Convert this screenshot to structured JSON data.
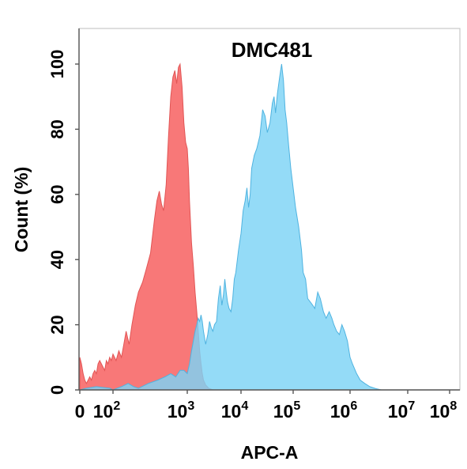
{
  "chart_data": {
    "type": "area",
    "title": "DMC481",
    "xlabel": "APC-A",
    "ylabel": "Count  (%)",
    "x_scale": "biexponential",
    "xlim": [
      0,
      100000000
    ],
    "ylim": [
      0,
      100
    ],
    "y_ticks": [
      0,
      20,
      40,
      60,
      80,
      100
    ],
    "x_ticks": [
      {
        "value": 0,
        "base": "0",
        "exp": ""
      },
      {
        "value": 100,
        "base": "10",
        "exp": "2"
      },
      {
        "value": 1000,
        "base": "10",
        "exp": "3"
      },
      {
        "value": 10000,
        "base": "10",
        "exp": "4"
      },
      {
        "value": 100000,
        "base": "10",
        "exp": "5"
      },
      {
        "value": 1000000,
        "base": "10",
        "exp": "6"
      },
      {
        "value": 10000000,
        "base": "10",
        "exp": "7"
      },
      {
        "value": 100000000,
        "base": "10",
        "exp": "8"
      }
    ],
    "grid": false,
    "series": [
      {
        "color": "#f87171",
        "stroke": "#e15555",
        "points": [
          [
            0,
            10
          ],
          [
            5,
            8
          ],
          [
            10,
            5
          ],
          [
            15,
            3
          ],
          [
            20,
            2
          ],
          [
            25,
            3
          ],
          [
            30,
            4
          ],
          [
            35,
            3
          ],
          [
            40,
            5
          ],
          [
            45,
            6
          ],
          [
            50,
            5
          ],
          [
            55,
            8
          ],
          [
            60,
            9
          ],
          [
            65,
            8
          ],
          [
            70,
            7
          ],
          [
            75,
            6
          ],
          [
            80,
            9
          ],
          [
            85,
            8
          ],
          [
            90,
            10
          ],
          [
            95,
            9
          ],
          [
            100,
            11
          ],
          [
            110,
            9
          ],
          [
            120,
            12
          ],
          [
            130,
            10
          ],
          [
            140,
            14
          ],
          [
            150,
            18
          ],
          [
            165,
            14
          ],
          [
            180,
            20
          ],
          [
            200,
            26
          ],
          [
            220,
            30
          ],
          [
            250,
            33
          ],
          [
            280,
            37
          ],
          [
            320,
            42
          ],
          [
            360,
            52
          ],
          [
            390,
            58
          ],
          [
            420,
            61
          ],
          [
            450,
            57
          ],
          [
            480,
            55
          ],
          [
            520,
            63
          ],
          [
            560,
            78
          ],
          [
            600,
            90
          ],
          [
            640,
            96
          ],
          [
            680,
            98
          ],
          [
            720,
            94
          ],
          [
            760,
            99
          ],
          [
            800,
            100
          ],
          [
            850,
            93
          ],
          [
            900,
            82
          ],
          [
            950,
            76
          ],
          [
            1000,
            74
          ],
          [
            1050,
            68
          ],
          [
            1100,
            58
          ],
          [
            1200,
            45
          ],
          [
            1300,
            38
          ],
          [
            1400,
            30
          ],
          [
            1500,
            24
          ],
          [
            1600,
            18
          ],
          [
            1700,
            12
          ],
          [
            1800,
            8
          ],
          [
            1900,
            5
          ],
          [
            2000,
            3
          ],
          [
            2200,
            1.5
          ],
          [
            2500,
            0.5
          ],
          [
            3000,
            0
          ]
        ]
      },
      {
        "color": "#7dd3f5",
        "stroke": "#4fb3e0",
        "points": [
          [
            0,
            0
          ],
          [
            20,
            0.5
          ],
          [
            50,
            1
          ],
          [
            90,
            0.5
          ],
          [
            100,
            0
          ],
          [
            130,
            1
          ],
          [
            160,
            2
          ],
          [
            190,
            1
          ],
          [
            220,
            0.5
          ],
          [
            300,
            2
          ],
          [
            400,
            3
          ],
          [
            500,
            4
          ],
          [
            600,
            5
          ],
          [
            700,
            4
          ],
          [
            800,
            6
          ],
          [
            900,
            6
          ],
          [
            1000,
            5
          ],
          [
            1100,
            8
          ],
          [
            1200,
            12
          ],
          [
            1300,
            15
          ],
          [
            1400,
            18
          ],
          [
            1500,
            20
          ],
          [
            1600,
            22
          ],
          [
            1700,
            21
          ],
          [
            1800,
            23
          ],
          [
            1900,
            21
          ],
          [
            2000,
            18
          ],
          [
            2100,
            16
          ],
          [
            2200,
            14
          ],
          [
            2400,
            17
          ],
          [
            2600,
            21
          ],
          [
            2800,
            19
          ],
          [
            3000,
            18
          ],
          [
            3200,
            20
          ],
          [
            3500,
            21
          ],
          [
            3800,
            28
          ],
          [
            4100,
            32
          ],
          [
            4400,
            26
          ],
          [
            4700,
            29
          ],
          [
            5000,
            34
          ],
          [
            5300,
            30
          ],
          [
            5600,
            27
          ],
          [
            6000,
            25
          ],
          [
            6500,
            24
          ],
          [
            7000,
            28
          ],
          [
            7500,
            34
          ],
          [
            8000,
            36
          ],
          [
            9000,
            43
          ],
          [
            10000,
            48
          ],
          [
            11000,
            55
          ],
          [
            12000,
            58
          ],
          [
            13000,
            62
          ],
          [
            14000,
            56
          ],
          [
            15000,
            60
          ],
          [
            16000,
            68
          ],
          [
            18000,
            72
          ],
          [
            20000,
            74
          ],
          [
            23000,
            78
          ],
          [
            26000,
            86
          ],
          [
            29000,
            84
          ],
          [
            32000,
            79
          ],
          [
            36000,
            82
          ],
          [
            40000,
            88
          ],
          [
            43000,
            90
          ],
          [
            46000,
            85
          ],
          [
            50000,
            91
          ],
          [
            55000,
            96
          ],
          [
            60000,
            100
          ],
          [
            65000,
            95
          ],
          [
            70000,
            86
          ],
          [
            75000,
            82
          ],
          [
            82000,
            75
          ],
          [
            90000,
            68
          ],
          [
            100000,
            62
          ],
          [
            110000,
            56
          ],
          [
            125000,
            50
          ],
          [
            140000,
            43
          ],
          [
            150000,
            36
          ],
          [
            165000,
            34
          ],
          [
            180000,
            28
          ],
          [
            200000,
            27
          ],
          [
            220000,
            26
          ],
          [
            240000,
            25
          ],
          [
            270000,
            30
          ],
          [
            300000,
            28
          ],
          [
            340000,
            24
          ],
          [
            380000,
            22
          ],
          [
            430000,
            24
          ],
          [
            480000,
            22
          ],
          [
            520000,
            20
          ],
          [
            580000,
            18
          ],
          [
            650000,
            17
          ],
          [
            720000,
            20
          ],
          [
            800000,
            18
          ],
          [
            900000,
            15
          ],
          [
            1000000,
            10
          ],
          [
            1100000,
            8
          ],
          [
            1300000,
            5
          ],
          [
            1500000,
            3
          ],
          [
            1800000,
            2
          ],
          [
            2200000,
            1
          ],
          [
            2800000,
            0.4
          ],
          [
            3500000,
            0
          ]
        ]
      }
    ]
  }
}
